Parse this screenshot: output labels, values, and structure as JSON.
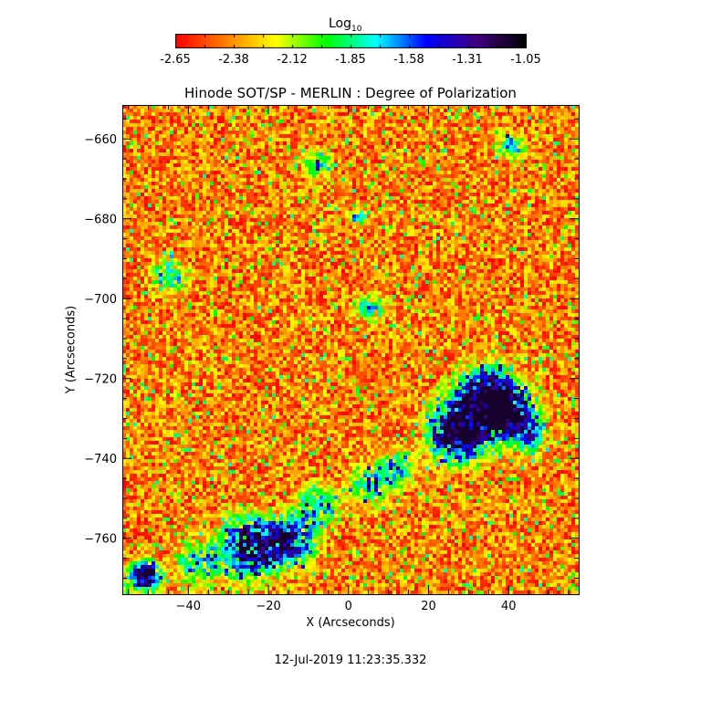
{
  "chart_data": {
    "type": "heatmap",
    "title": "Hinode SOT/SP - MERLIN : Degree of Polarization",
    "xlabel": "X (Arcseconds)",
    "ylabel": "Y (Arcseconds)",
    "xlim": [
      -56.5,
      57.5
    ],
    "ylim": [
      -774,
      -651.5
    ],
    "xticks": [
      -40,
      -20,
      0,
      20,
      40
    ],
    "yticks": [
      -660,
      -680,
      -700,
      -720,
      -740,
      -760
    ],
    "colorbar": {
      "label": "Log",
      "label_sub": "10",
      "range": [
        -2.65,
        -1.05
      ],
      "ticks": [
        "-2.65",
        "-2.38",
        "-2.12",
        "-1.85",
        "-1.58",
        "-1.31",
        "-1.05"
      ],
      "colormap": [
        "#ff0000",
        "#ff8000",
        "#ffff00",
        "#00ff00",
        "#00ffff",
        "#0000ff",
        "#400080",
        "#000000"
      ]
    },
    "grid": false
  },
  "footer": {
    "timestamp": "12-Jul-2019 11:23:35.332"
  }
}
